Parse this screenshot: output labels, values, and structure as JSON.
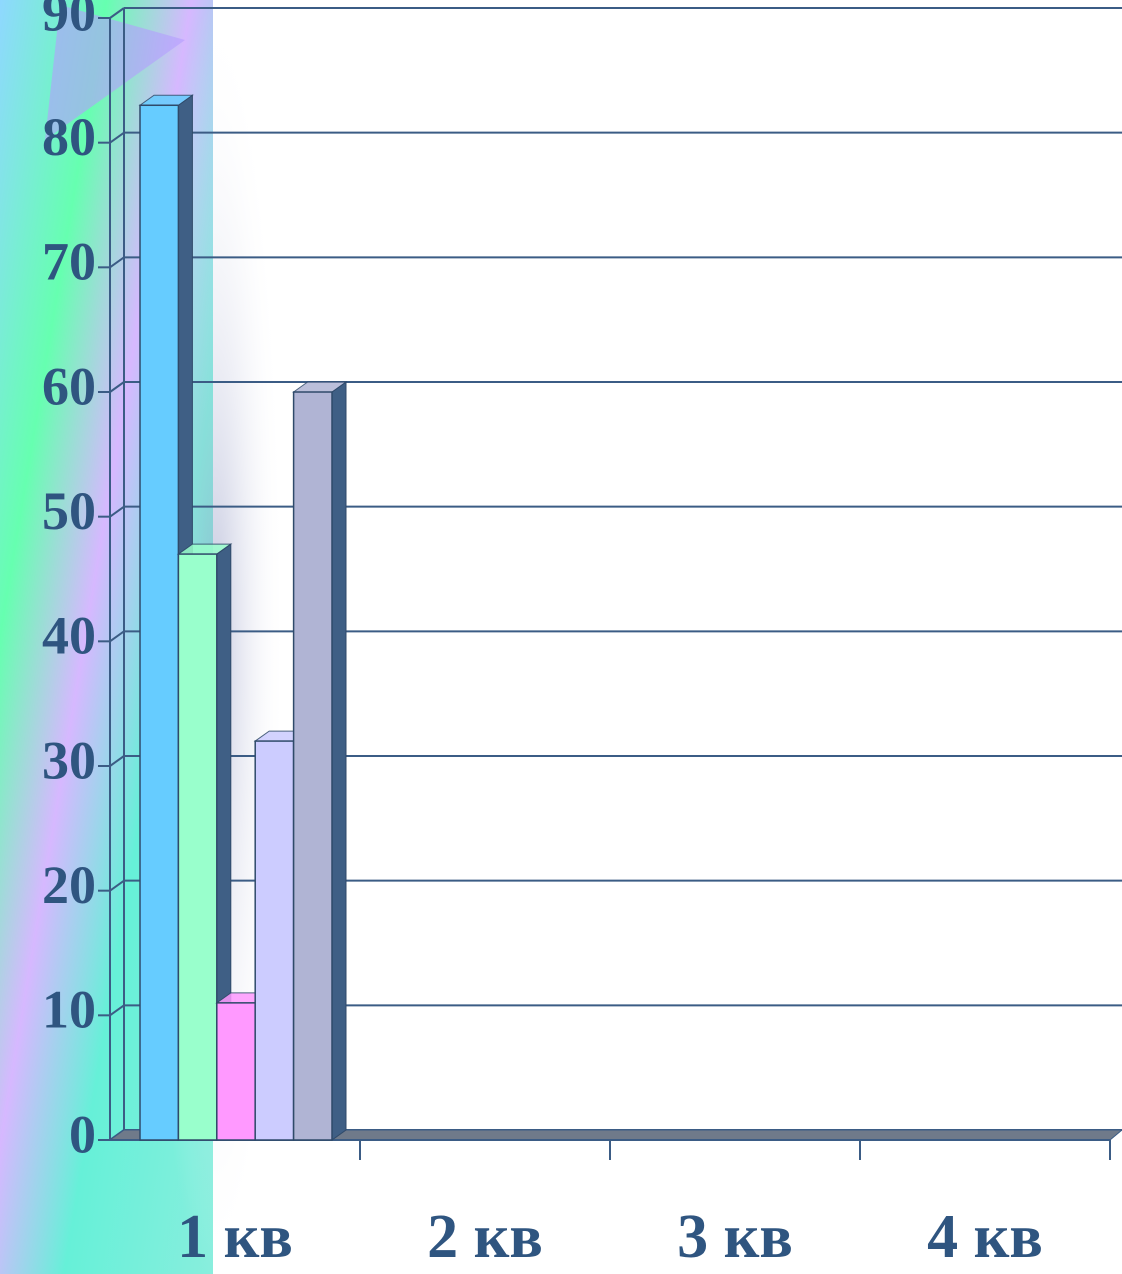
{
  "chart_data": {
    "type": "bar3d",
    "categories": [
      "1 кв",
      "2 кв",
      "3 кв",
      "4 кв"
    ],
    "series": [
      {
        "color": "#66ccff",
        "values": [
          83,
          null,
          null,
          null
        ]
      },
      {
        "color": "#99ffcc",
        "values": [
          47,
          null,
          null,
          null
        ]
      },
      {
        "color": "#ff99ff",
        "values": [
          11,
          null,
          null,
          null
        ]
      },
      {
        "color": "#ccccff",
        "values": [
          32,
          null,
          null,
          null
        ]
      },
      {
        "color": "#b0b4d4",
        "values": [
          60,
          null,
          null,
          null
        ]
      }
    ],
    "ylim": [
      0,
      90
    ],
    "yticks": [
      0,
      10,
      20,
      30,
      40,
      50,
      60,
      70,
      80,
      90
    ],
    "grid": true
  }
}
